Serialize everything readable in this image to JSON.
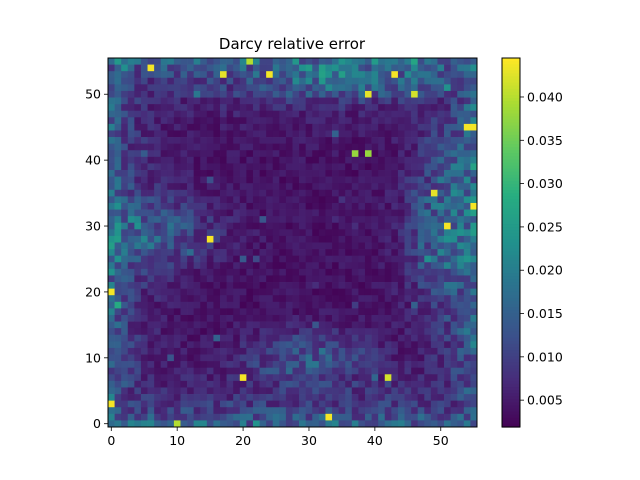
{
  "chart_data": {
    "type": "heatmap",
    "title": "Darcy relative error",
    "grid_rows": 56,
    "grid_cols": 56,
    "colormap": "viridis",
    "color_range": [
      0.0019,
      0.0445
    ],
    "x_ticks": [
      0,
      10,
      20,
      30,
      40,
      50
    ],
    "y_ticks": [
      0,
      10,
      20,
      30,
      40,
      50
    ],
    "xlim": [
      -0.5,
      55.5
    ],
    "ylim": [
      55.5,
      -0.5
    ],
    "colorbar_ticks": [
      "0.005",
      "0.010",
      "0.015",
      "0.020",
      "0.025",
      "0.030",
      "0.035",
      "0.040"
    ],
    "colorbar_tick_values": [
      0.005,
      0.01,
      0.015,
      0.02,
      0.025,
      0.03,
      0.035,
      0.04
    ],
    "hotspots": [
      {
        "x": 6,
        "y": 1,
        "value": 0.044
      },
      {
        "x": 17,
        "y": 2,
        "value": 0.043
      },
      {
        "x": 24,
        "y": 2,
        "value": 0.044
      },
      {
        "x": 43,
        "y": 2,
        "value": 0.044
      },
      {
        "x": 39,
        "y": 5,
        "value": 0.043
      },
      {
        "x": 46,
        "y": 5,
        "value": 0.042
      },
      {
        "x": 54,
        "y": 10,
        "value": 0.044
      },
      {
        "x": 55,
        "y": 10,
        "value": 0.044
      },
      {
        "x": 49,
        "y": 20,
        "value": 0.043
      },
      {
        "x": 55,
        "y": 22,
        "value": 0.044
      },
      {
        "x": 51,
        "y": 25,
        "value": 0.044
      },
      {
        "x": 15,
        "y": 27,
        "value": 0.044
      },
      {
        "x": 0,
        "y": 35,
        "value": 0.044
      },
      {
        "x": 20,
        "y": 48,
        "value": 0.044
      },
      {
        "x": 42,
        "y": 48,
        "value": 0.042
      },
      {
        "x": 0,
        "y": 52,
        "value": 0.044
      },
      {
        "x": 33,
        "y": 54,
        "value": 0.044
      },
      {
        "x": 10,
        "y": 55,
        "value": 0.04
      },
      {
        "x": 21,
        "y": 0,
        "value": 0.04
      },
      {
        "x": 37,
        "y": 14,
        "value": 0.038
      },
      {
        "x": 39,
        "y": 14,
        "value": 0.038
      }
    ]
  }
}
